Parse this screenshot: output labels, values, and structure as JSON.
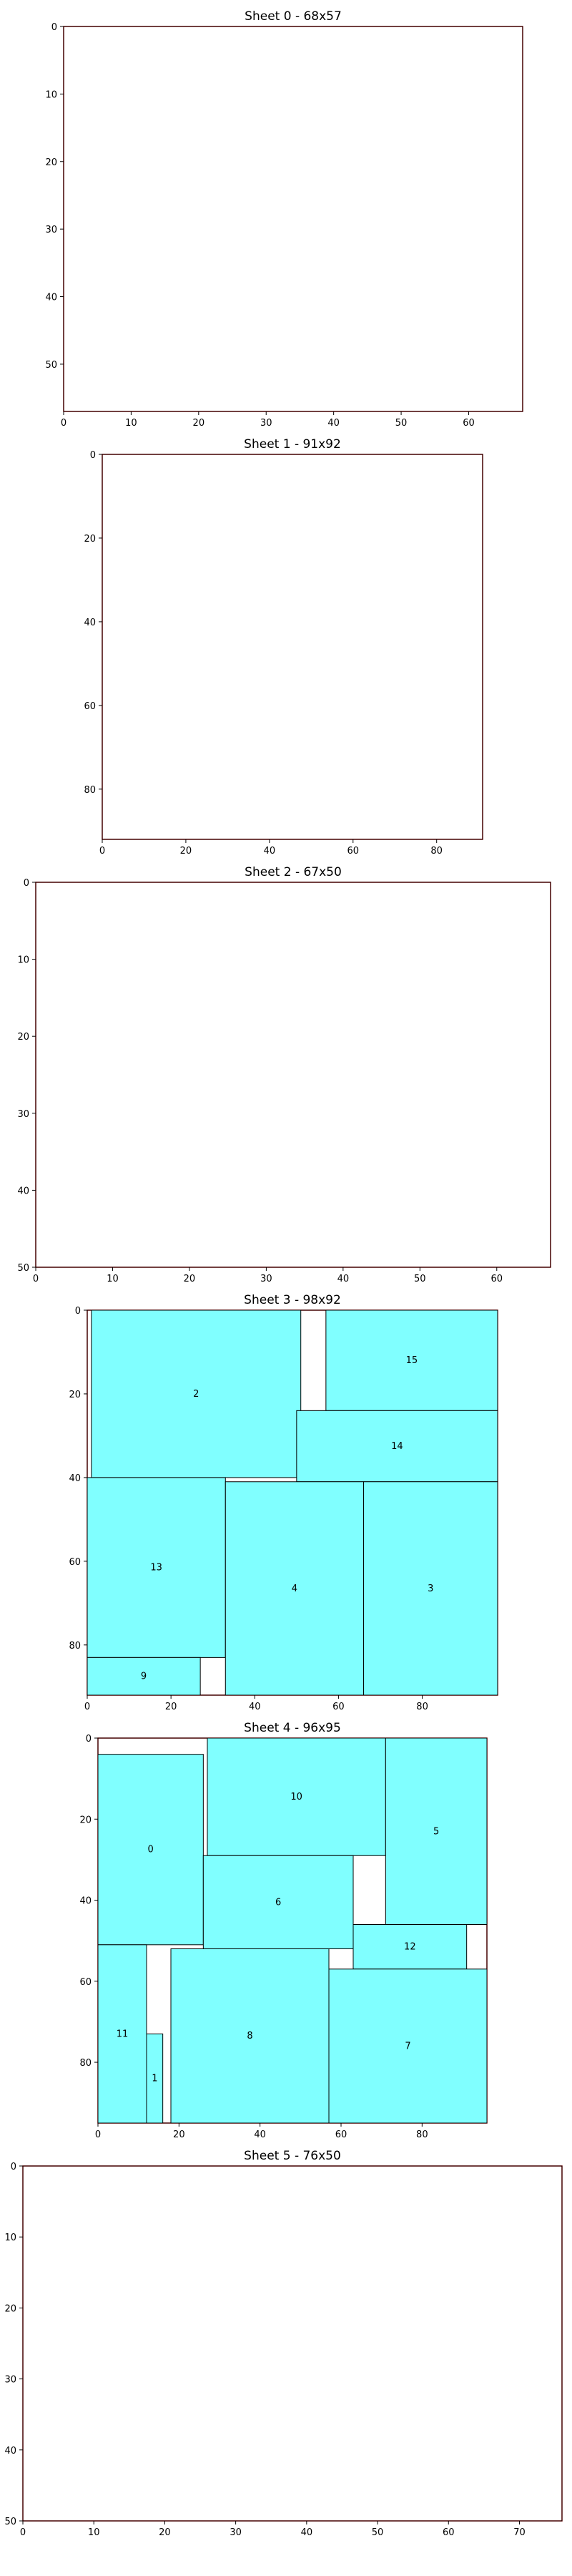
{
  "colors": {
    "fill": "#80ffff",
    "piece_edge": "#000000",
    "sheet_edge": "#cc0000",
    "axes": "#000000",
    "background": "#ffffff"
  },
  "chart_data": [
    {
      "type": "rectangle-packing",
      "title": "Sheet 0 - 68x57",
      "sheet": {
        "width": 68,
        "height": 57
      },
      "xlim": [
        0,
        68
      ],
      "ylim": [
        57,
        0
      ],
      "xticks": [
        0,
        10,
        20,
        30,
        40,
        50,
        60
      ],
      "yticks": [
        0,
        10,
        20,
        30,
        40,
        50
      ],
      "rects": []
    },
    {
      "type": "rectangle-packing",
      "title": "Sheet 1 - 91x92",
      "sheet": {
        "width": 91,
        "height": 92
      },
      "xlim": [
        0,
        91
      ],
      "ylim": [
        92,
        0
      ],
      "xticks": [
        0,
        20,
        40,
        60,
        80
      ],
      "yticks": [
        0,
        20,
        40,
        60,
        80
      ],
      "rects": []
    },
    {
      "type": "rectangle-packing",
      "title": "Sheet 2 - 67x50",
      "sheet": {
        "width": 67,
        "height": 50
      },
      "xlim": [
        0,
        67
      ],
      "ylim": [
        50,
        0
      ],
      "xticks": [
        0,
        10,
        20,
        30,
        40,
        50,
        60
      ],
      "yticks": [
        0,
        10,
        20,
        30,
        40,
        50
      ],
      "rects": []
    },
    {
      "type": "rectangle-packing",
      "title": "Sheet 3 - 98x92",
      "sheet": {
        "width": 98,
        "height": 92
      },
      "xlim": [
        0,
        98
      ],
      "ylim": [
        92,
        0
      ],
      "xticks": [
        0,
        20,
        40,
        60,
        80
      ],
      "yticks": [
        0,
        20,
        40,
        60,
        80
      ],
      "rects": [
        {
          "label": "2",
          "x": 1,
          "y": 0,
          "w": 50,
          "h": 40
        },
        {
          "label": "15",
          "x": 57,
          "y": 0,
          "w": 41,
          "h": 24
        },
        {
          "label": "14",
          "x": 50,
          "y": 24,
          "w": 48,
          "h": 17
        },
        {
          "label": "13",
          "x": 0,
          "y": 40,
          "w": 33,
          "h": 43
        },
        {
          "label": "4",
          "x": 33,
          "y": 41,
          "w": 33,
          "h": 51
        },
        {
          "label": "3",
          "x": 66,
          "y": 41,
          "w": 32,
          "h": 51
        },
        {
          "label": "9",
          "x": 0,
          "y": 83,
          "w": 27,
          "h": 9
        }
      ]
    },
    {
      "type": "rectangle-packing",
      "title": "Sheet 4 - 96x95",
      "sheet": {
        "width": 96,
        "height": 95
      },
      "xlim": [
        0,
        96
      ],
      "ylim": [
        95,
        0
      ],
      "xticks": [
        0,
        20,
        40,
        60,
        80
      ],
      "yticks": [
        0,
        20,
        40,
        60,
        80
      ],
      "rects": [
        {
          "label": "10",
          "x": 27,
          "y": 0,
          "w": 44,
          "h": 29
        },
        {
          "label": "5",
          "x": 71,
          "y": 0,
          "w": 25,
          "h": 46
        },
        {
          "label": "0",
          "x": 0,
          "y": 4,
          "w": 26,
          "h": 47
        },
        {
          "label": "6",
          "x": 26,
          "y": 29,
          "w": 37,
          "h": 23
        },
        {
          "label": "12",
          "x": 63,
          "y": 46,
          "w": 28,
          "h": 11
        },
        {
          "label": "11",
          "x": 0,
          "y": 51,
          "w": 12,
          "h": 44
        },
        {
          "label": "8",
          "x": 18,
          "y": 52,
          "w": 39,
          "h": 43
        },
        {
          "label": "7",
          "x": 57,
          "y": 57,
          "w": 39,
          "h": 38
        },
        {
          "label": "1",
          "x": 12,
          "y": 73,
          "w": 4,
          "h": 22
        }
      ]
    },
    {
      "type": "rectangle-packing",
      "title": "Sheet 5 - 76x50",
      "sheet": {
        "width": 76,
        "height": 50
      },
      "xlim": [
        0,
        76
      ],
      "ylim": [
        50,
        0
      ],
      "xticks": [
        0,
        10,
        20,
        30,
        40,
        50,
        60,
        70
      ],
      "yticks": [
        0,
        10,
        20,
        30,
        40,
        50
      ],
      "rects": []
    }
  ]
}
